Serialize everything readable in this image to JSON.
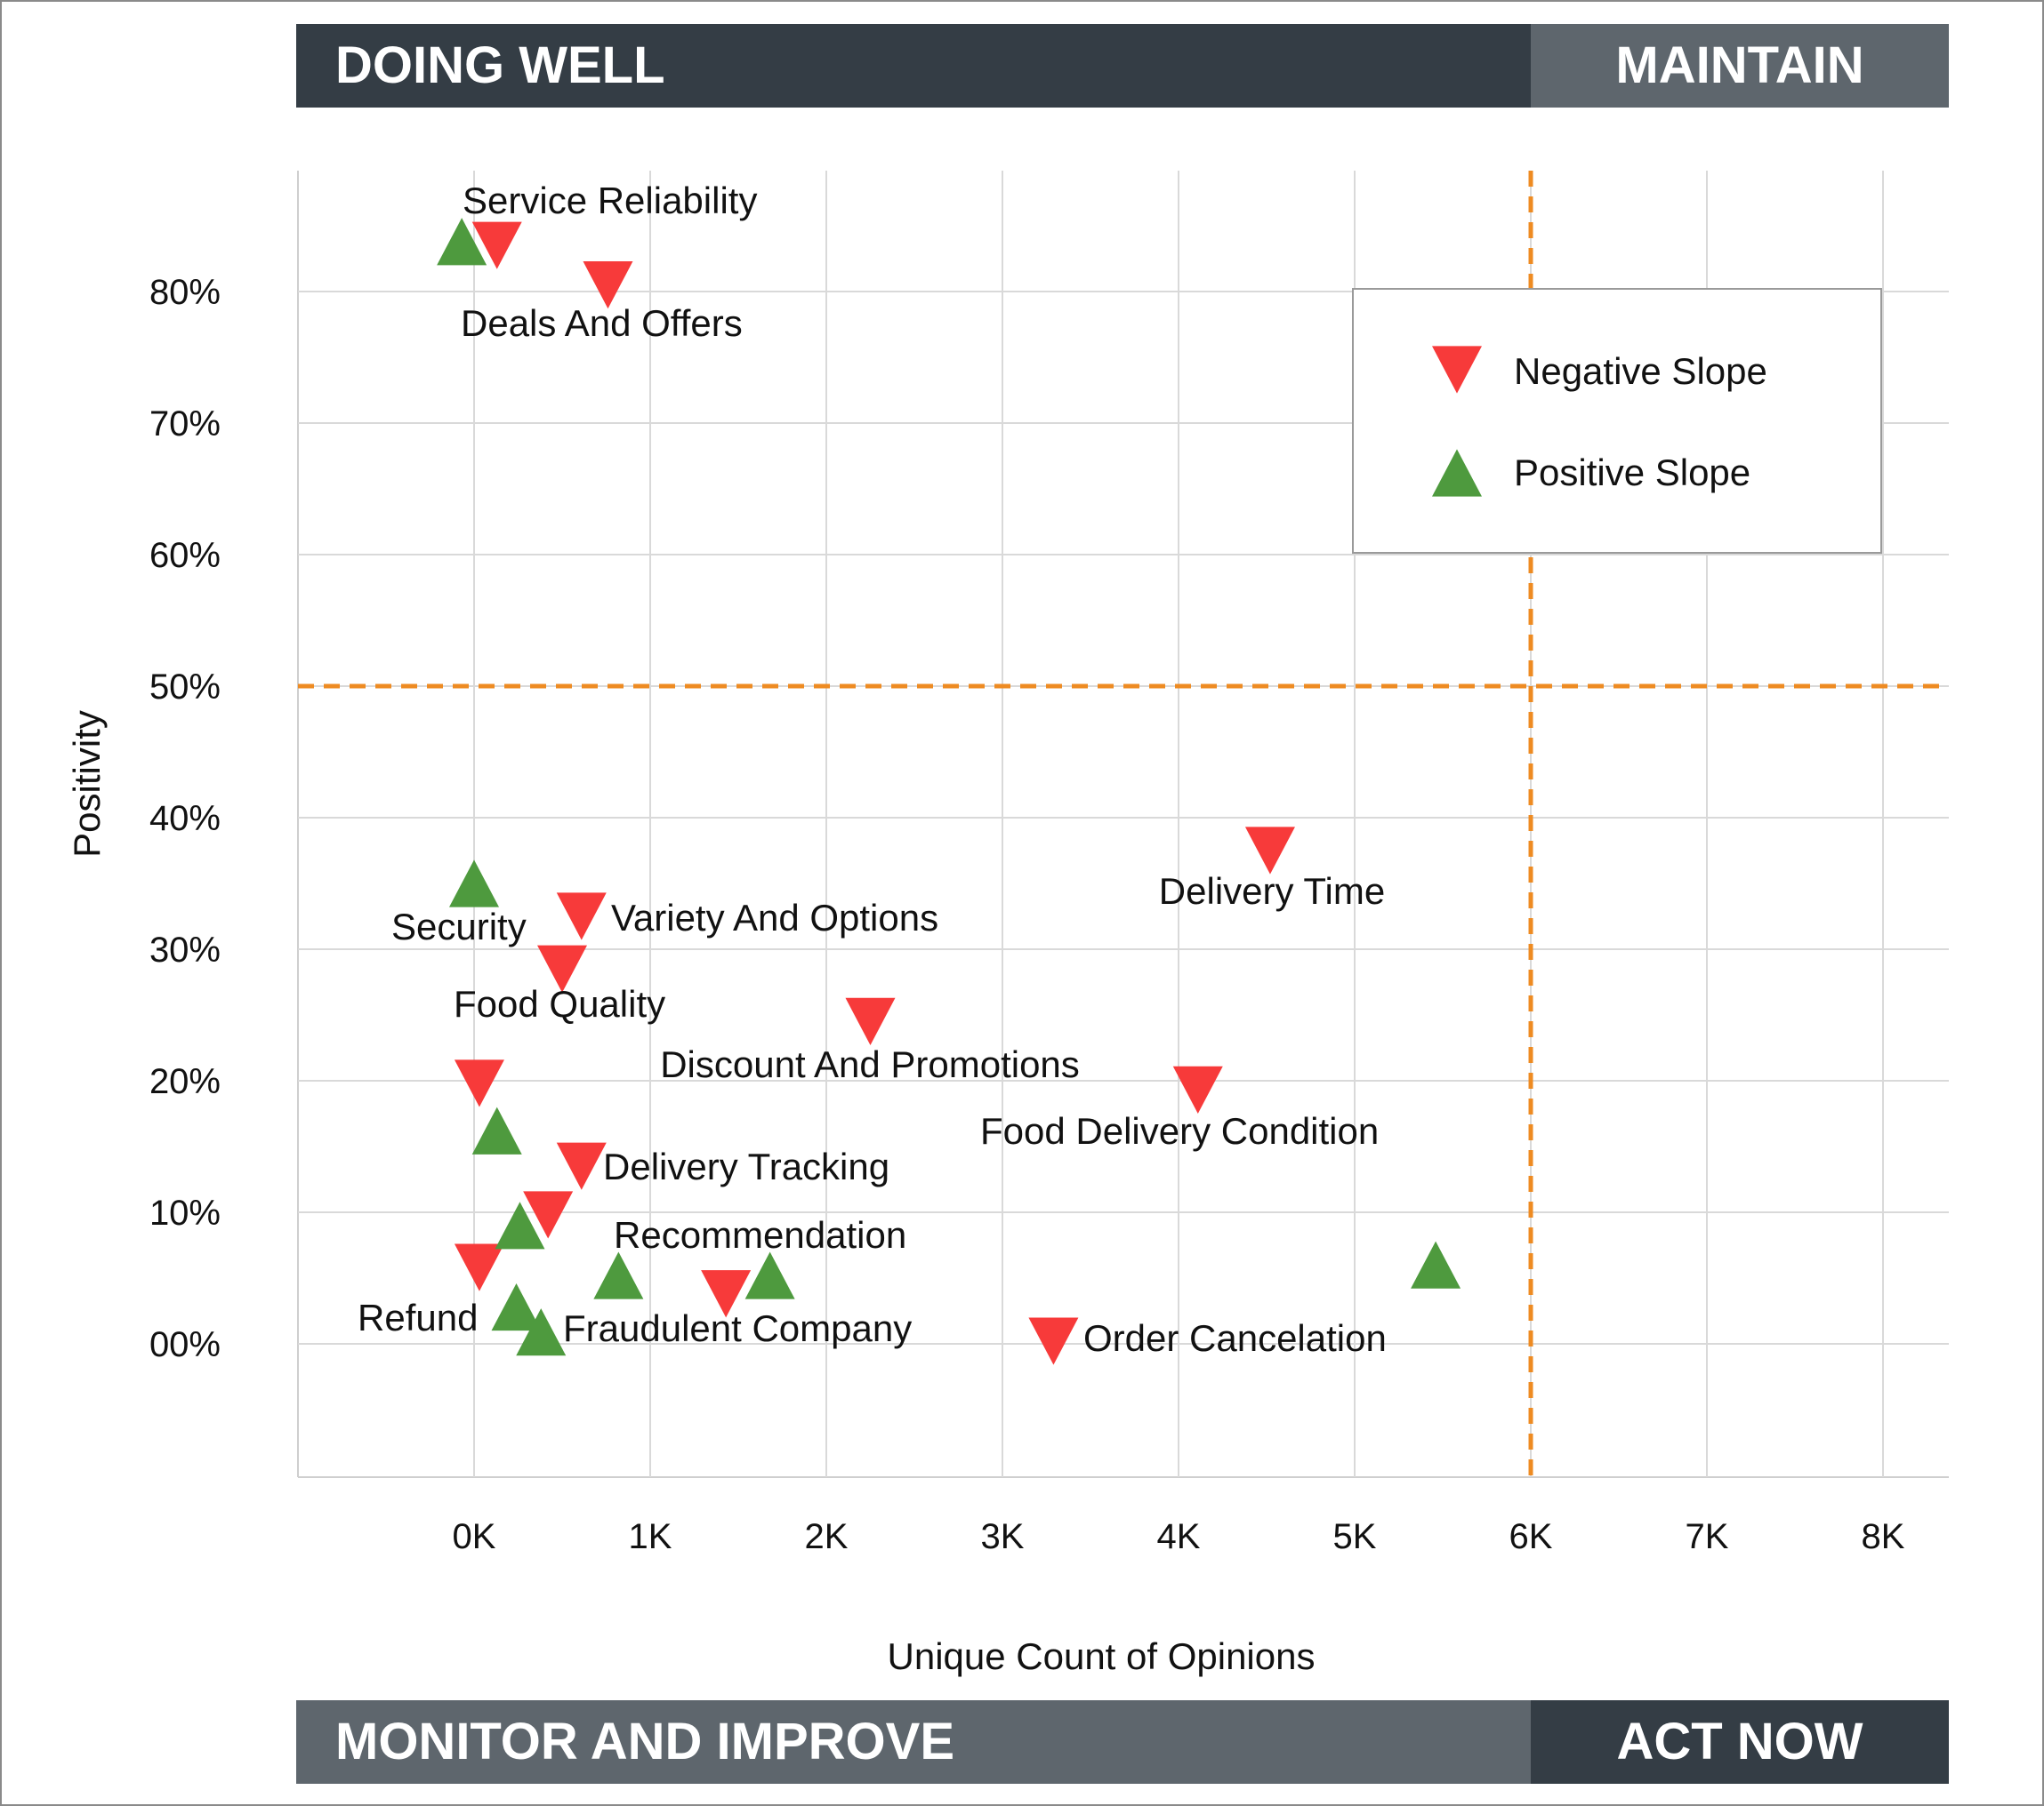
{
  "quadrants": {
    "top_left": "DOING WELL",
    "top_right": "MAINTAIN",
    "bottom_left": "MONITOR AND IMPROVE",
    "bottom_right": "ACT NOW"
  },
  "colors": {
    "negative": "#f73a3a",
    "positive": "#4e9a3e",
    "threshold": "#ee8b22",
    "grid": "#d9d9d9",
    "banner_dark": "#343d45",
    "banner_grey": "#5e666d"
  },
  "chart_data": {
    "type": "scatter",
    "xlabel": "Unique Count of Opinions",
    "ylabel": "Positivity",
    "xlim": [
      -1000,
      8400
    ],
    "ylim": [
      -10,
      90
    ],
    "x_ticks": [
      0,
      1000,
      2000,
      3000,
      4000,
      5000,
      6000,
      7000,
      8000
    ],
    "x_tick_labels": [
      "0K",
      "1K",
      "2K",
      "3K",
      "4K",
      "5K",
      "6K",
      "7K",
      "8K"
    ],
    "y_ticks": [
      0,
      10,
      20,
      30,
      40,
      50,
      60,
      70,
      80
    ],
    "y_tick_labels": [
      "00%",
      "10%",
      "20%",
      "30%",
      "40%",
      "50%",
      "60%",
      "70%",
      "80%"
    ],
    "thresholds": {
      "x": 6000,
      "y": 50
    },
    "grid": true,
    "legend": {
      "placement": "top-right",
      "entries": [
        {
          "label": "Negative Slope",
          "marker": "triangle-down"
        },
        {
          "label": "Positive Slope",
          "marker": "triangle-up"
        }
      ]
    },
    "series": [
      {
        "name": "Negative Slope",
        "marker": "triangle-down",
        "points": [
          {
            "x": 130,
            "y": 83.5,
            "label": "Service Reliability"
          },
          {
            "x": 760,
            "y": 80.5,
            "label": "Deals And Offers"
          },
          {
            "x": 4520,
            "y": 37.5,
            "label": "Delivery Time"
          },
          {
            "x": 610,
            "y": 32.5,
            "label": "Variety And Options"
          },
          {
            "x": 500,
            "y": 28.5,
            "label": "Food Quality"
          },
          {
            "x": 2250,
            "y": 24.5,
            "label": "Discount And Promotions"
          },
          {
            "x": 30,
            "y": 19.8,
            "label": ""
          },
          {
            "x": 4110,
            "y": 19.3,
            "label": "Food Delivery Condition"
          },
          {
            "x": 610,
            "y": 13.5,
            "label": "Delivery Tracking"
          },
          {
            "x": 420,
            "y": 9.8,
            "label": ""
          },
          {
            "x": 30,
            "y": 5.8,
            "label": ""
          },
          {
            "x": 1430,
            "y": 3.8,
            "label": ""
          },
          {
            "x": 3290,
            "y": 0.2,
            "label": "Order Cancelation"
          }
        ]
      },
      {
        "name": "Positive Slope",
        "marker": "triangle-up",
        "points": [
          {
            "x": -70,
            "y": 83.8,
            "label": ""
          },
          {
            "x": 0,
            "y": 35.0,
            "label": "Security"
          },
          {
            "x": 130,
            "y": 16.2,
            "label": ""
          },
          {
            "x": 260,
            "y": 9.0,
            "label": ""
          },
          {
            "x": 820,
            "y": 5.2,
            "label": "Recommendation"
          },
          {
            "x": 1680,
            "y": 5.2,
            "label": ""
          },
          {
            "x": 5460,
            "y": 6.0,
            "label": ""
          },
          {
            "x": 240,
            "y": 2.8,
            "label": "Refund"
          },
          {
            "x": 380,
            "y": 0.9,
            "label": "Fraudulent Company"
          }
        ]
      }
    ]
  }
}
